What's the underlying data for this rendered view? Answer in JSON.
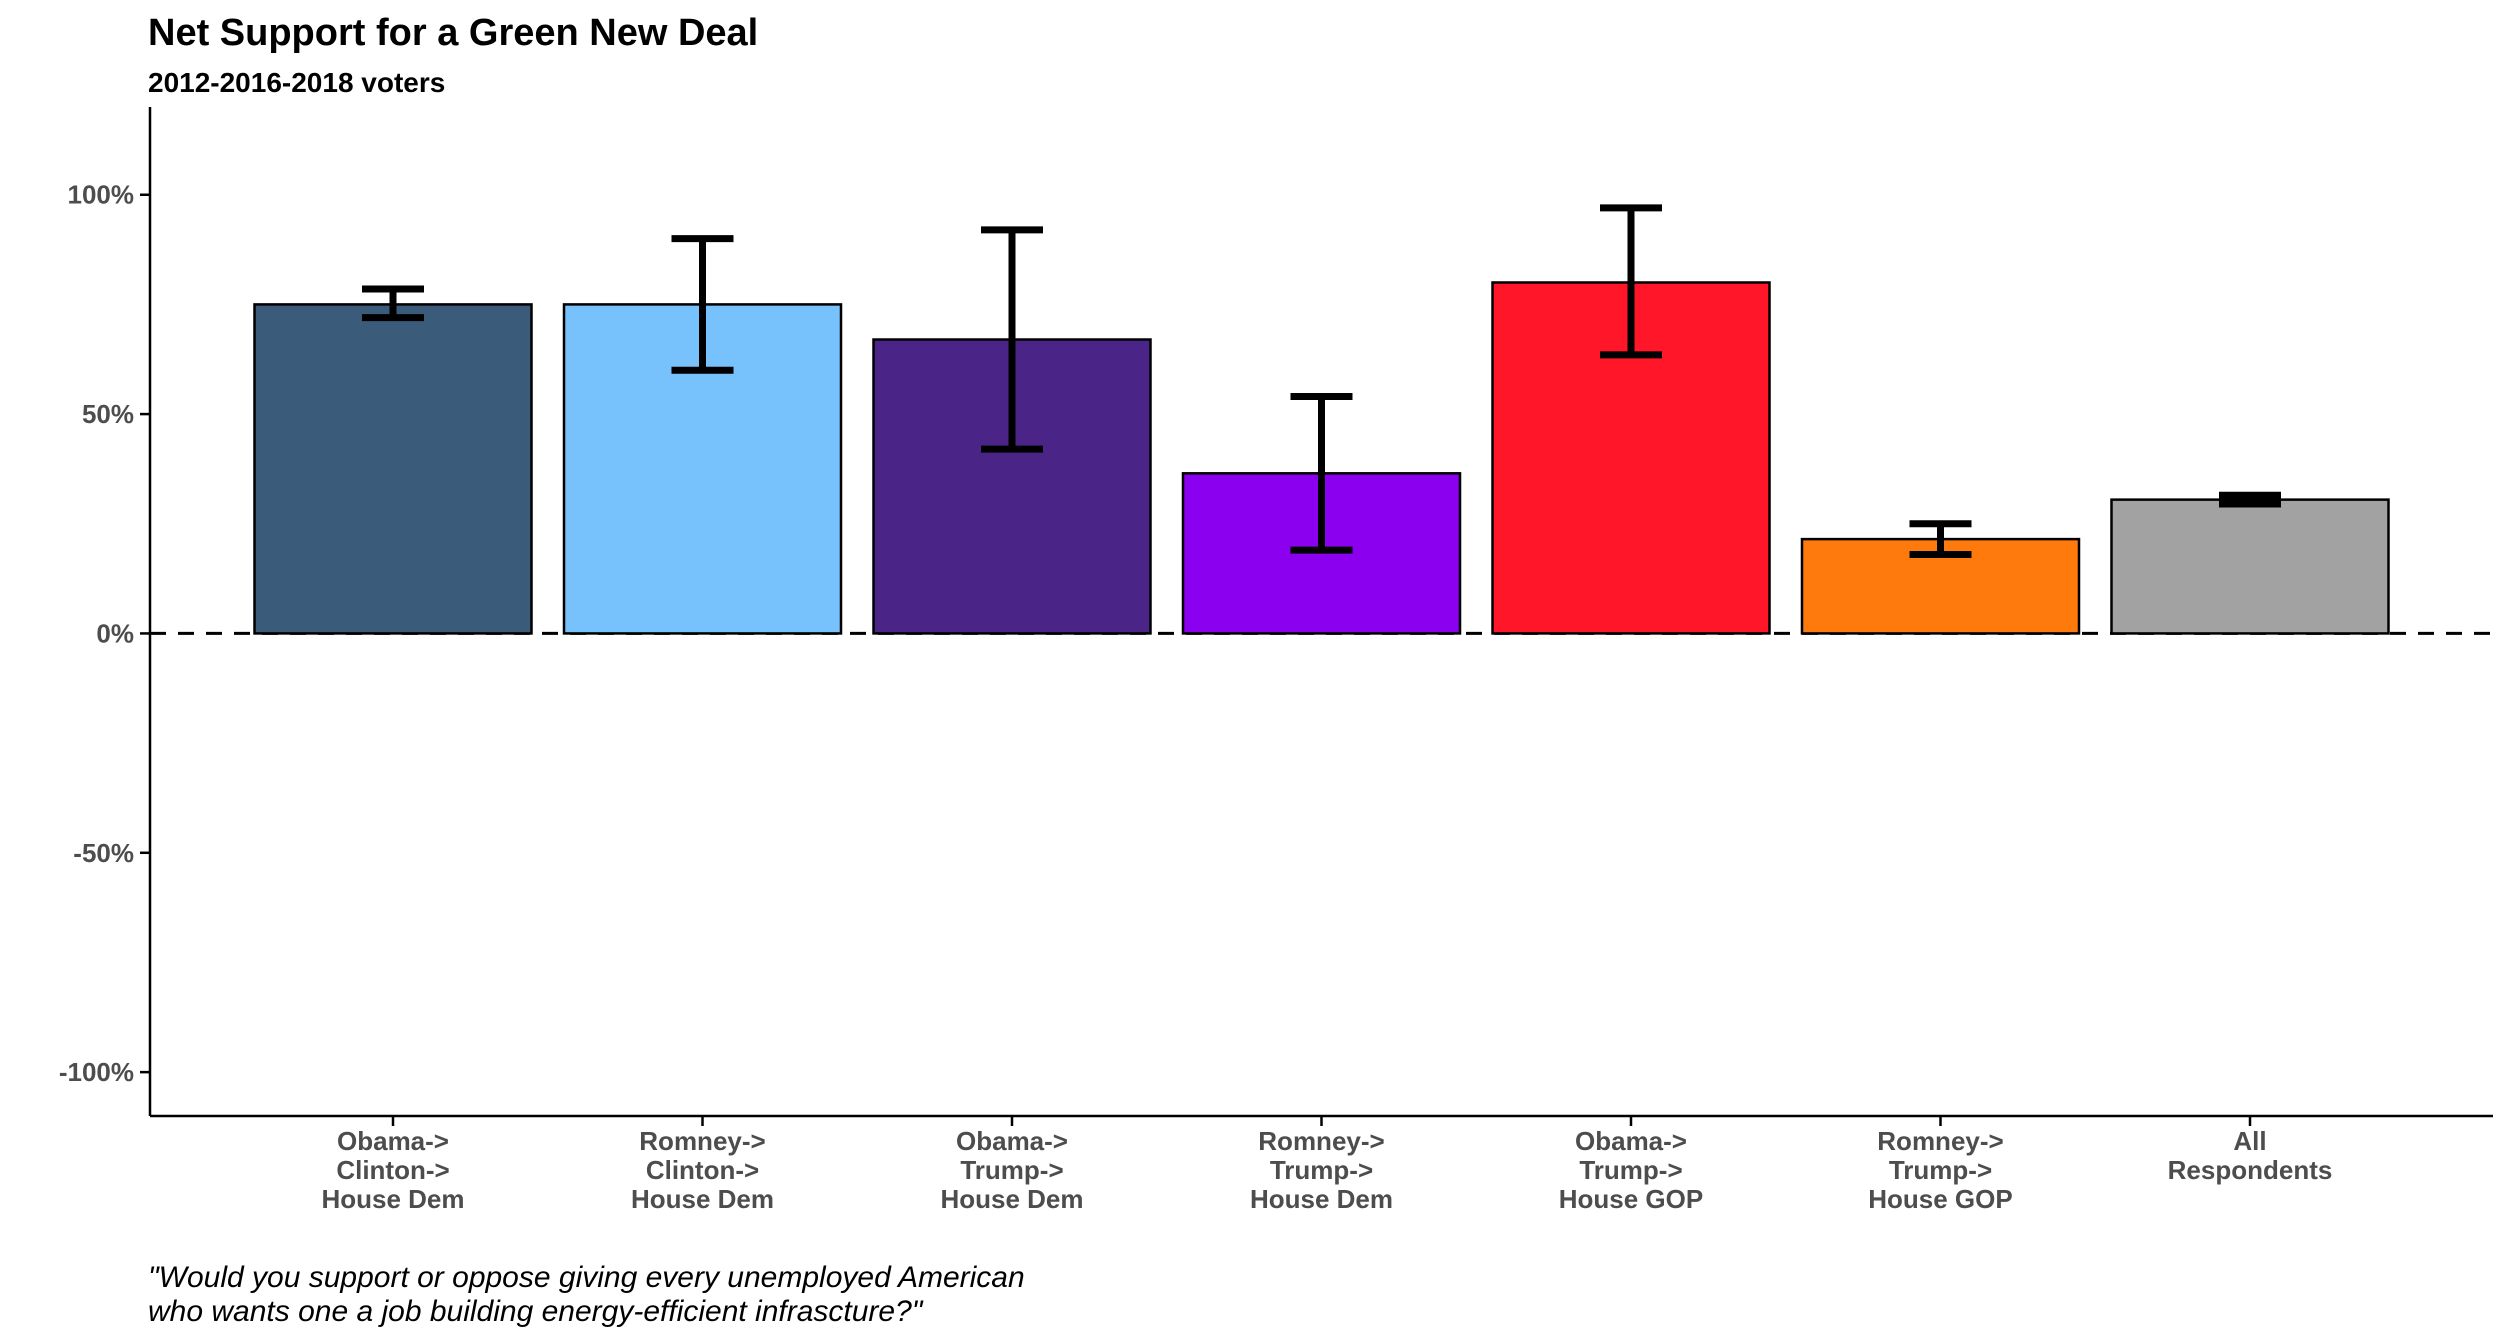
{
  "chart_data": {
    "type": "bar",
    "title": "Net Support for a Green New Deal",
    "subtitle": "2012-2016-2018 voters",
    "xlabel": "",
    "ylabel": "",
    "ylim": [
      -110,
      120
    ],
    "yticks": [
      -100,
      -50,
      0,
      50,
      100
    ],
    "ytick_labels": [
      "-100%",
      "-50%",
      "0%",
      "50%",
      "100%"
    ],
    "grid": false,
    "legend": "none",
    "reference_line": {
      "value": 0,
      "style": "dashed"
    },
    "categories": [
      [
        "Obama->",
        "Clinton->",
        "House Dem"
      ],
      [
        "Romney->",
        "Clinton->",
        "House Dem"
      ],
      [
        "Obama->",
        "Trump->",
        "House Dem"
      ],
      [
        "Romney->",
        "Trump->",
        "House Dem"
      ],
      [
        "Obama->",
        "Trump->",
        "House GOP"
      ],
      [
        "Romney->",
        "Trump->",
        "House GOP"
      ],
      [
        "All",
        "Respondents"
      ]
    ],
    "values": [
      75,
      75,
      67,
      36.5,
      80,
      21.5,
      30.5
    ],
    "error_low": [
      72,
      60,
      42,
      19,
      63.5,
      18,
      29.5
    ],
    "error_high": [
      78.5,
      90,
      92,
      54,
      97,
      25,
      31.5
    ],
    "colors": [
      "#3b5b7a",
      "#77c1fc",
      "#4a2487",
      "#8b00ee",
      "#ff1628",
      "#ff7a0c",
      "#a2a2a2"
    ],
    "caption": [
      "\"Would you support or oppose giving every unemployed American",
      "who wants one a job building energy-efficient infrascture?\""
    ]
  }
}
